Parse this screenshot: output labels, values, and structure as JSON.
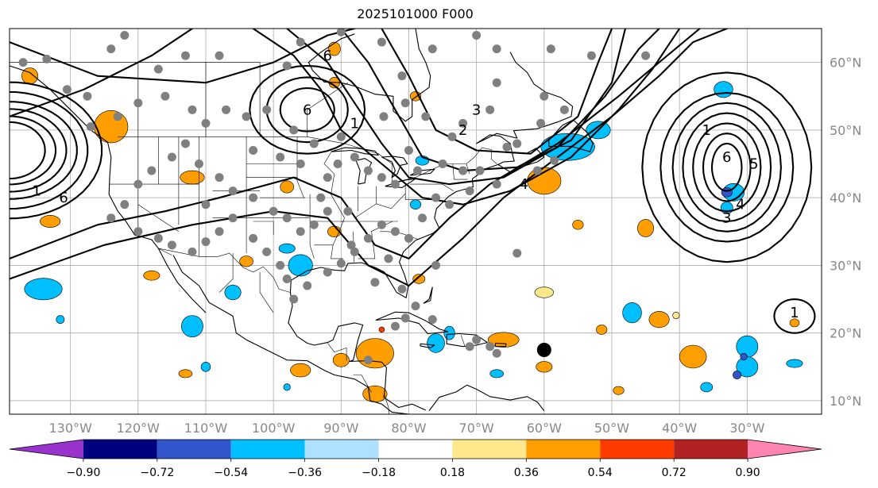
{
  "title": "2025101000 F000",
  "map": {
    "lon_range": [
      -139,
      -19
    ],
    "lat_range": [
      8,
      65
    ],
    "lon_ticks": [
      {
        "value": -130,
        "label": "130°W"
      },
      {
        "value": -120,
        "label": "120°W"
      },
      {
        "value": -110,
        "label": "110°W"
      },
      {
        "value": -100,
        "label": "100°W"
      },
      {
        "value": -90,
        "label": "90°W"
      },
      {
        "value": -80,
        "label": "80°W"
      },
      {
        "value": -70,
        "label": "70°W"
      },
      {
        "value": -60,
        "label": "60°W"
      },
      {
        "value": -50,
        "label": "50°W"
      },
      {
        "value": -40,
        "label": "40°W"
      },
      {
        "value": -30,
        "label": "30°W"
      }
    ],
    "lat_ticks": [
      {
        "value": 60,
        "label": "60°N"
      },
      {
        "value": 50,
        "label": "50°N"
      },
      {
        "value": 40,
        "label": "40°N"
      },
      {
        "value": 30,
        "label": "30°N"
      },
      {
        "value": 20,
        "label": "20°N"
      },
      {
        "value": 10,
        "label": "10°N"
      }
    ],
    "contour_labels": [
      {
        "text": "6",
        "lon": -131,
        "lat": 40
      },
      {
        "text": "1",
        "lon": -135,
        "lat": 41
      },
      {
        "text": "6",
        "lon": -92,
        "lat": 61
      },
      {
        "text": "6",
        "lon": -95,
        "lat": 53
      },
      {
        "text": "1",
        "lon": -88,
        "lat": 51
      },
      {
        "text": "2",
        "lon": -72,
        "lat": 50
      },
      {
        "text": "3",
        "lon": -70,
        "lat": 53
      },
      {
        "text": "4",
        "lon": -63,
        "lat": 42
      },
      {
        "text": "1",
        "lon": -36,
        "lat": 50
      },
      {
        "text": "6",
        "lon": -33,
        "lat": 46
      },
      {
        "text": "5",
        "lon": -29,
        "lat": 45
      },
      {
        "text": "4",
        "lon": -31,
        "lat": 39
      },
      {
        "text": "3",
        "lon": -33,
        "lat": 37
      },
      {
        "text": "1",
        "lon": -23,
        "lat": 23
      }
    ],
    "storm_marker": {
      "lon": -60,
      "lat": 17.5
    }
  },
  "colorbar": {
    "colors": [
      "#9933cc",
      "#000080",
      "#3355cc",
      "#00bfff",
      "#aee0ff",
      "#ffffff",
      "#ffe88c",
      "#ff9e00",
      "#ff3c00",
      "#b22222",
      "#ff85b0"
    ],
    "tick_labels": [
      "−0.90",
      "−0.72",
      "−0.54",
      "−0.36",
      "−0.18",
      "0.18",
      "0.36",
      "0.54",
      "0.72",
      "0.90"
    ]
  }
}
